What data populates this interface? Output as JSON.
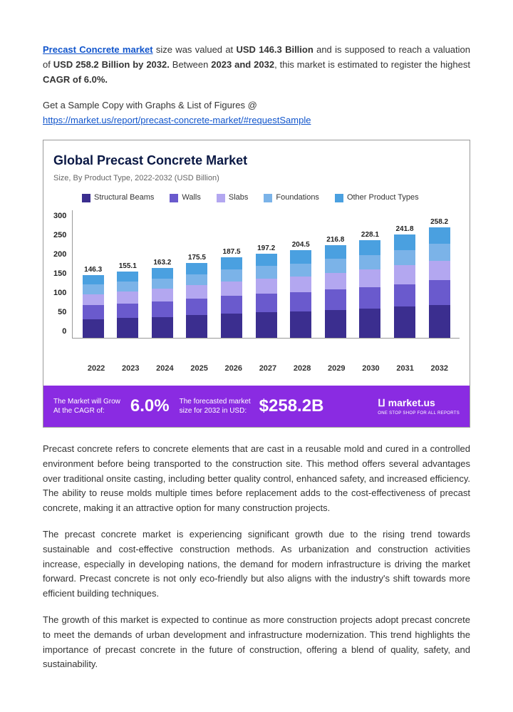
{
  "intro": {
    "prefix_link": "Precast Concrete market",
    "t1": " size was valued at ",
    "bold1": "USD 146.3 Billion",
    "t2": " and is supposed to reach a valuation of ",
    "bold2": "USD 258.2 Billion by 2032.",
    "t3": " Between ",
    "bold3": "2023 and 2032",
    "t4": ", this market is estimated to register the highest ",
    "bold4": "CAGR of 6.0%."
  },
  "sample": {
    "text": "Get a Sample Copy with Graphs & List of Figures @",
    "link": "https://market.us/report/precast-concrete-market/#requestSample"
  },
  "chart": {
    "title": "Global Precast Concrete Market",
    "subtitle": "Size, By Product Type, 2022-2032 (USD Billion)",
    "legend": [
      {
        "label": "Structural Beams",
        "color": "#3b2e8f"
      },
      {
        "label": "Walls",
        "color": "#6a5acd"
      },
      {
        "label": "Slabs",
        "color": "#b3a7f0"
      },
      {
        "label": "Foundations",
        "color": "#7bb3e8"
      },
      {
        "label": "Other Product Types",
        "color": "#4aa0e0"
      }
    ],
    "ymax": 300,
    "yticks": [
      "300",
      "250",
      "200",
      "150",
      "100",
      "50",
      "0"
    ],
    "years": [
      "2022",
      "2023",
      "2024",
      "2025",
      "2026",
      "2027",
      "2028",
      "2029",
      "2030",
      "2031",
      "2032"
    ],
    "totals": [
      "146.3",
      "155.1",
      "163.2",
      "175.5",
      "187.5",
      "197.2",
      "204.5",
      "216.8",
      "228.1",
      "241.8",
      "258.2"
    ],
    "series_fracs": [
      0.3,
      0.22,
      0.18,
      0.15,
      0.15
    ],
    "footer": {
      "left1": "The Market will Grow",
      "left2": "At the CAGR of:",
      "cagr": "6.0%",
      "mid1": "The forecasted market",
      "mid2": "size for 2032 in USD:",
      "val": "$258.2B",
      "brand": "ⵡ market.us",
      "brand_sub": "ONE STOP SHOP FOR ALL REPORTS"
    }
  },
  "body": {
    "p1": "Precast concrete refers to concrete elements that are cast in a reusable mold and cured in a controlled environment before being transported to the construction site. This method offers several advantages over traditional onsite casting, including better quality control, enhanced safety, and increased efficiency. The ability to reuse molds multiple times before replacement adds to the cost-effectiveness of precast concrete, making it an attractive option for many construction projects.",
    "p2": "The precast concrete market is experiencing significant growth due to the rising trend towards sustainable and cost-effective construction methods. As urbanization and construction activities increase, especially in developing nations, the demand for modern infrastructure is driving the market forward. Precast concrete is not only eco-friendly but also aligns with the industry's shift towards more efficient building techniques.",
    "p3": "The growth of this market is expected to continue as more construction projects adopt precast concrete to meet the demands of urban development and infrastructure modernization. This trend highlights the importance of precast concrete in the future of construction, offering a blend of quality, safety, and sustainability."
  }
}
